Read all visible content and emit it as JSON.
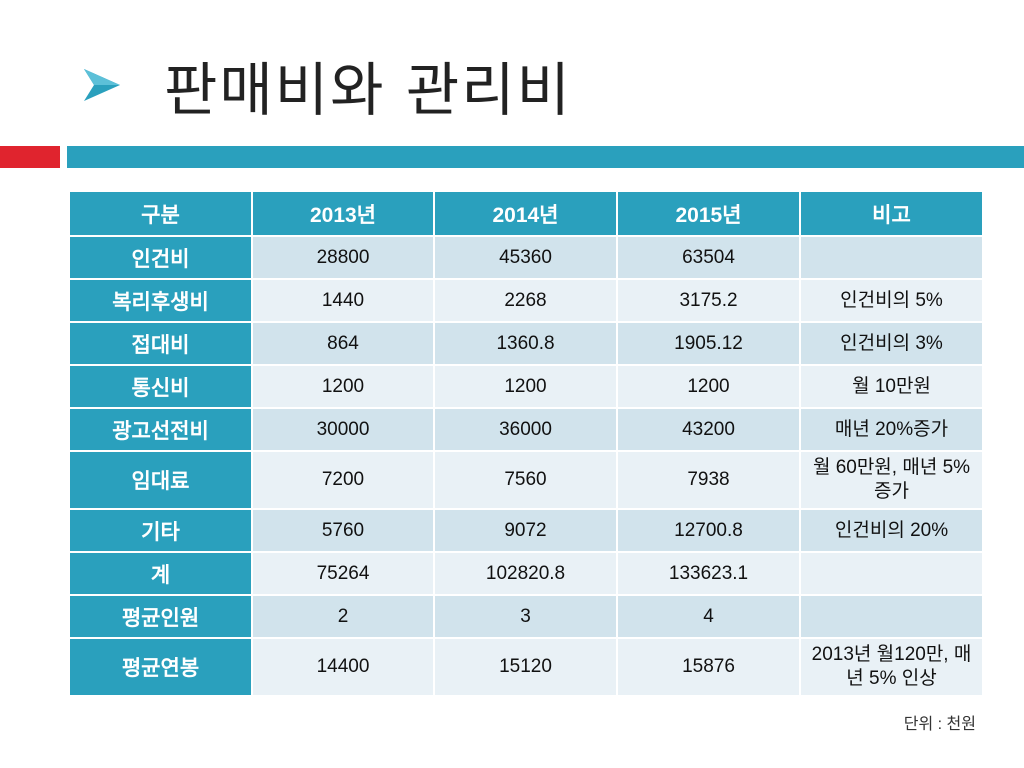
{
  "slide": {
    "title": "판매비와 관리비",
    "unit_note": "단위 : 천원",
    "colors": {
      "accent": "#2aa0bd",
      "red_band": "#e0242e",
      "row_odd": "#d1e3ec",
      "row_even": "#e9f1f6"
    }
  },
  "table": {
    "headers": [
      "구분",
      "2013년",
      "2014년",
      "2015년",
      "비고"
    ],
    "rows": [
      {
        "label": "인건비",
        "y2013": "28800",
        "y2014": "45360",
        "y2015": "63504",
        "note": ""
      },
      {
        "label": "복리후생비",
        "y2013": "1440",
        "y2014": "2268",
        "y2015": "3175.2",
        "note": "인건비의 5%"
      },
      {
        "label": "접대비",
        "y2013": "864",
        "y2014": "1360.8",
        "y2015": "1905.12",
        "note": "인건비의 3%"
      },
      {
        "label": "통신비",
        "y2013": "1200",
        "y2014": "1200",
        "y2015": "1200",
        "note": "월 10만원"
      },
      {
        "label": "광고선전비",
        "y2013": "30000",
        "y2014": "36000",
        "y2015": "43200",
        "note": "매년 20%증가"
      },
      {
        "label": "임대료",
        "y2013": "7200",
        "y2014": "7560",
        "y2015": "7938",
        "note": "월 60만원, 매년 5%증가"
      },
      {
        "label": "기타",
        "y2013": "5760",
        "y2014": "9072",
        "y2015": "12700.8",
        "note": "인건비의 20%"
      },
      {
        "label": "계",
        "y2013": "75264",
        "y2014": "102820.8",
        "y2015": "133623.1",
        "note": ""
      },
      {
        "label": "평균인원",
        "y2013": "2",
        "y2014": "3",
        "y2015": "4",
        "note": ""
      },
      {
        "label": "평균연봉",
        "y2013": "14400",
        "y2014": "15120",
        "y2015": "15876",
        "note": "2013년 월120만, 매년 5% 인상"
      }
    ]
  }
}
